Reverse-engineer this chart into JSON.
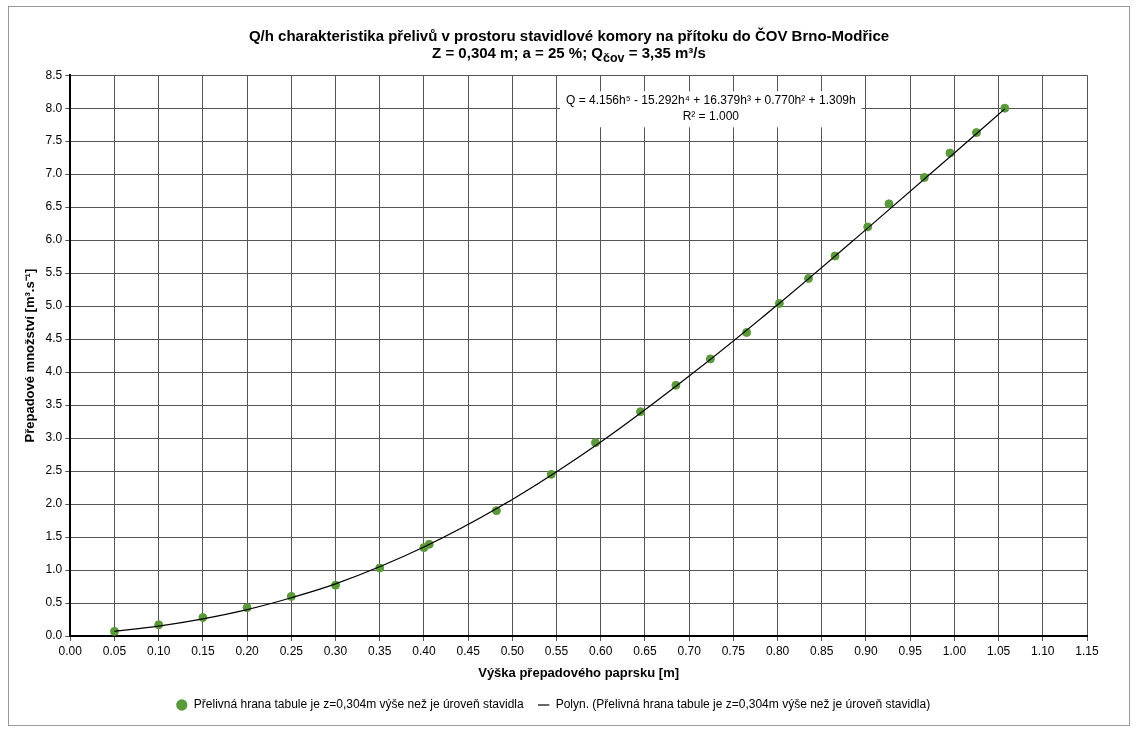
{
  "chart_data": {
    "type": "scatter",
    "title": "Q/h charakteristika přelivů v prostoru stavidlové komory na přítoku do ČOV Brno-Modřice",
    "subtitle": "Z = 0,304 m; a = 25 %; Q$_{čov}$ = 3,35 m³/s",
    "xlabel": "Výška přepadového paprsku [m]",
    "ylabel": "Přepadové množství [m³.s⁻¹]",
    "annotations": [
      "Q = 4.156h⁵ - 15.292h⁴ + 16.379h³ + 0.770h² + 1.309h",
      "R² = 1.000"
    ],
    "series": [
      {
        "name": "Přelivná hrana tabule je z=0,304m výše než je úroveň stavidla",
        "type": "scatter",
        "color": "#5b9a3a",
        "marker": "circle",
        "x": [
          0.05,
          0.1,
          0.15,
          0.2,
          0.25,
          0.3,
          0.35,
          0.4,
          0.406,
          0.482,
          0.544,
          0.594,
          0.645,
          0.685,
          0.724,
          0.765,
          0.802,
          0.835,
          0.865,
          0.902,
          0.926,
          0.966,
          0.995,
          1.025,
          1.057
        ],
        "values": [
          0.07,
          0.17,
          0.28,
          0.43,
          0.6,
          0.77,
          1.03,
          1.34,
          1.39,
          1.9,
          2.45,
          2.93,
          3.4,
          3.8,
          4.2,
          4.6,
          5.04,
          5.42,
          5.76,
          6.2,
          6.55,
          6.95,
          7.32,
          7.63,
          8.0
        ]
      },
      {
        "name": "Polyn. (Přelivná hrana tabule je z=0,304m výše než je úroveň stavidla)",
        "type": "line",
        "color": "#000000",
        "line_style": "solid",
        "x": [
          0.05,
          0.1,
          0.15,
          0.2,
          0.25,
          0.3,
          0.4,
          0.5,
          0.6,
          0.7,
          0.8,
          0.9,
          1.0,
          1.057
        ],
        "values": [
          0.07,
          0.15,
          0.26,
          0.4,
          0.58,
          0.79,
          1.35,
          2.07,
          2.94,
          3.94,
          5.02,
          6.16,
          7.32,
          7.99
        ]
      }
    ],
    "xlim": [
      0,
      1.15
    ],
    "ylim": [
      0,
      8.5
    ],
    "xticks": [
      {
        "value": 0,
        "label": "0.00"
      },
      {
        "value": 0.05,
        "label": "0.05"
      },
      {
        "value": 0.1,
        "label": "0.10"
      },
      {
        "value": 0.15,
        "label": "0.15"
      },
      {
        "value": 0.2,
        "label": "0.20"
      },
      {
        "value": 0.25,
        "label": "0.25"
      },
      {
        "value": 0.3,
        "label": "0.30"
      },
      {
        "value": 0.35,
        "label": "0.35"
      },
      {
        "value": 0.4,
        "label": "0.40"
      },
      {
        "value": 0.45,
        "label": "0.45"
      },
      {
        "value": 0.5,
        "label": "0.50"
      },
      {
        "value": 0.55,
        "label": "0.55"
      },
      {
        "value": 0.6,
        "label": "0.60"
      },
      {
        "value": 0.65,
        "label": "0.65"
      },
      {
        "value": 0.7,
        "label": "0.70"
      },
      {
        "value": 0.75,
        "label": "0.75"
      },
      {
        "value": 0.8,
        "label": "0.80"
      },
      {
        "value": 0.85,
        "label": "0.85"
      },
      {
        "value": 0.9,
        "label": "0.90"
      },
      {
        "value": 0.95,
        "label": "0.95"
      },
      {
        "value": 1,
        "label": "1.00"
      },
      {
        "value": 1.05,
        "label": "1.05"
      },
      {
        "value": 1.1,
        "label": "1.10"
      },
      {
        "value": 1.15,
        "label": "1.15"
      }
    ],
    "yticks": [
      {
        "value": 0,
        "label": "0.0"
      },
      {
        "value": 0.5,
        "label": "0.5"
      },
      {
        "value": 1,
        "label": "1.0"
      },
      {
        "value": 1.5,
        "label": "1.5"
      },
      {
        "value": 2,
        "label": "2.0"
      },
      {
        "value": 2.5,
        "label": "2.5"
      },
      {
        "value": 3,
        "label": "3.0"
      },
      {
        "value": 3.5,
        "label": "3.5"
      },
      {
        "value": 4,
        "label": "4.0"
      },
      {
        "value": 4.5,
        "label": "4.5"
      },
      {
        "value": 5,
        "label": "5.0"
      },
      {
        "value": 5.5,
        "label": "5.5"
      },
      {
        "value": 6,
        "label": "6.0"
      },
      {
        "value": 6.5,
        "label": "6.5"
      },
      {
        "value": 7,
        "label": "7.0"
      },
      {
        "value": 7.5,
        "label": "7.5"
      },
      {
        "value": 8,
        "label": "8.0"
      },
      {
        "value": 8.5,
        "label": "8.5"
      }
    ],
    "grid": true,
    "legend": "bottom"
  }
}
